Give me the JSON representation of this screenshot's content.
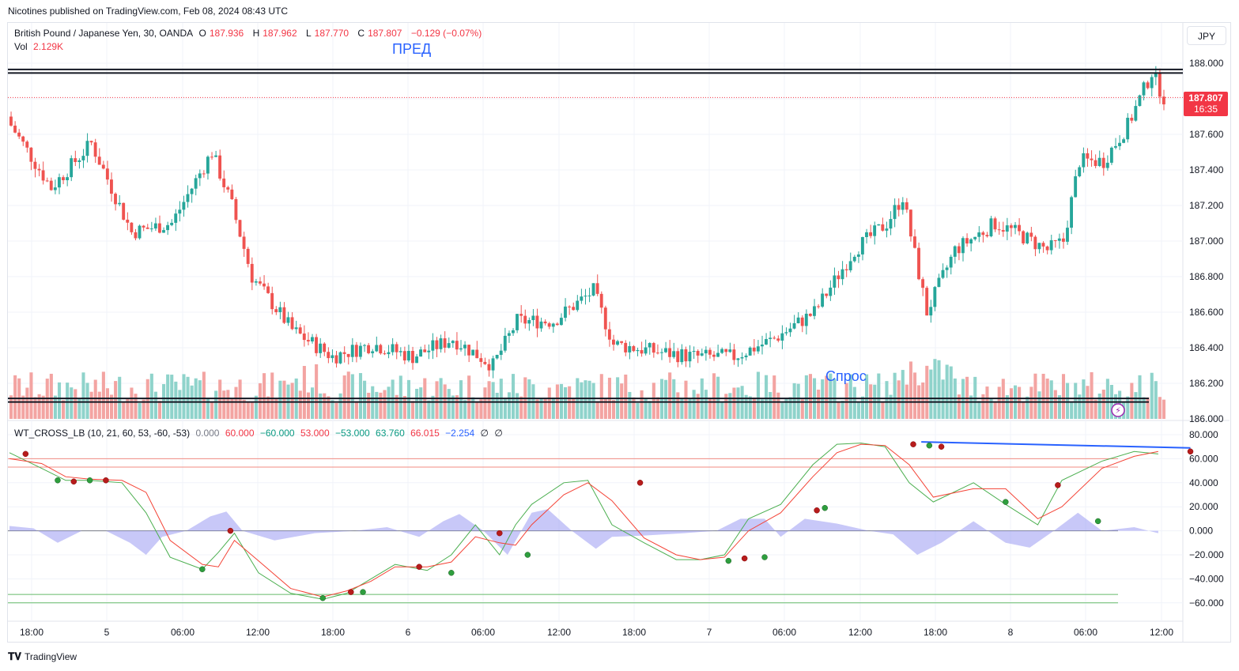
{
  "header": {
    "publisher": "Nicotines published on TradingView.com, Feb 08, 2024 08:43 UTC"
  },
  "legend": {
    "symbol": "British Pound / Japanese Yen, 30, OANDA",
    "o_label": "O",
    "o_value": "187.936",
    "h_label": "H",
    "h_value": "187.962",
    "l_label": "L",
    "l_value": "187.770",
    "c_label": "C",
    "c_value": "187.807",
    "change": "−0.129 (−0.07%)",
    "vol_label": "Vol",
    "vol_value": "2.129K",
    "indicator": "WT_CROSS_LB (10, 21, 60, 53, -60, -53)",
    "ind_values": [
      "0.000",
      "60.000",
      "−60.000",
      "53.000",
      "−53.000",
      "63.760",
      "66.015",
      "−2.254",
      "∅",
      "∅"
    ]
  },
  "currency_button": "JPY",
  "price_badge": {
    "price": "187.807",
    "countdown": "16:35"
  },
  "annotations": {
    "pred": "ПРЕД",
    "spros": "Спрос"
  },
  "footer": {
    "logo_text": "TradingView"
  },
  "colors": {
    "up": "#26a69a",
    "down": "#ef5350",
    "up_vol": "#8fd3cb",
    "down_vol": "#f3a4a2",
    "wave1": "#4caf50",
    "wave2": "#f44336",
    "hist": "#9b9bf2",
    "level_red": "#f28b82",
    "level_green": "#66bb6a",
    "trendline": "#2962ff"
  },
  "chart_data": [
    {
      "type": "candlestick",
      "title": "British Pound / Japanese Yen, 30, OANDA",
      "x_tick_labels": [
        "18:00",
        "5",
        "06:00",
        "12:00",
        "18:00",
        "6",
        "06:00",
        "12:00",
        "18:00",
        "7",
        "06:00",
        "12:00",
        "18:00",
        "8",
        "06:00",
        "12:00"
      ],
      "y_tick_labels": [
        "188.000",
        "187.800",
        "187.600",
        "187.400",
        "187.200",
        "187.000",
        "186.800",
        "186.600",
        "186.400",
        "186.200",
        "186.000"
      ],
      "ylim": [
        186.0,
        188.2
      ],
      "horizontal_levels": [
        187.965,
        187.945,
        186.115,
        186.095
      ],
      "last_price_line": 187.807,
      "close_path": [
        {
          "bar": 0,
          "close": 187.65
        },
        {
          "bar": 10,
          "close": 187.3
        },
        {
          "bar": 20,
          "close": 187.55
        },
        {
          "bar": 30,
          "close": 187.05
        },
        {
          "bar": 40,
          "close": 187.1
        },
        {
          "bar": 50,
          "close": 187.5
        },
        {
          "bar": 55,
          "close": 187.2
        },
        {
          "bar": 60,
          "close": 186.8
        },
        {
          "bar": 70,
          "close": 186.5
        },
        {
          "bar": 80,
          "close": 186.35
        },
        {
          "bar": 90,
          "close": 186.42
        },
        {
          "bar": 100,
          "close": 186.35
        },
        {
          "bar": 110,
          "close": 186.45
        },
        {
          "bar": 120,
          "close": 186.3
        },
        {
          "bar": 126,
          "close": 186.55
        },
        {
          "bar": 135,
          "close": 186.55
        },
        {
          "bar": 145,
          "close": 186.72
        },
        {
          "bar": 150,
          "close": 186.42
        },
        {
          "bar": 160,
          "close": 186.38
        },
        {
          "bar": 170,
          "close": 186.35
        },
        {
          "bar": 180,
          "close": 186.35
        },
        {
          "bar": 190,
          "close": 186.45
        },
        {
          "bar": 200,
          "close": 186.6
        },
        {
          "bar": 210,
          "close": 186.95
        },
        {
          "bar": 218,
          "close": 187.1
        },
        {
          "bar": 222,
          "close": 187.25
        },
        {
          "bar": 228,
          "close": 186.6
        },
        {
          "bar": 235,
          "close": 186.95
        },
        {
          "bar": 245,
          "close": 187.1
        },
        {
          "bar": 250,
          "close": 187.05
        },
        {
          "bar": 258,
          "close": 186.95
        },
        {
          "bar": 262,
          "close": 187.0
        },
        {
          "bar": 266,
          "close": 187.45
        },
        {
          "bar": 272,
          "close": 187.45
        },
        {
          "bar": 278,
          "close": 187.65
        },
        {
          "bar": 284,
          "close": 187.95
        },
        {
          "bar": 287,
          "close": 187.807
        }
      ],
      "volume_label": "Vol 2.129K"
    },
    {
      "type": "line",
      "title": "WT_CROSS_LB (10, 21, 60, 53, -60, -53)",
      "y_tick_labels": [
        "80.000",
        "60.000",
        "40.000",
        "20.000",
        "0.000",
        "−20.000",
        "−40.000",
        "−60.000"
      ],
      "ylim": [
        -70,
        85
      ],
      "levels": [
        60,
        53,
        0,
        -53,
        -60
      ],
      "series": [
        {
          "name": "wt1",
          "points": [
            [
              0,
              65
            ],
            [
              8,
              52
            ],
            [
              14,
              42
            ],
            [
              20,
              42
            ],
            [
              28,
              40
            ],
            [
              34,
              15
            ],
            [
              40,
              -22
            ],
            [
              48,
              -32
            ],
            [
              52,
              -18
            ],
            [
              56,
              -2
            ],
            [
              62,
              -35
            ],
            [
              70,
              -52
            ],
            [
              78,
              -57
            ],
            [
              84,
              -52
            ],
            [
              90,
              -40
            ],
            [
              96,
              -28
            ],
            [
              104,
              -33
            ],
            [
              110,
              -20
            ],
            [
              116,
              5
            ],
            [
              122,
              -20
            ],
            [
              126,
              5
            ],
            [
              130,
              22
            ],
            [
              138,
              40
            ],
            [
              144,
              42
            ],
            [
              150,
              5
            ],
            [
              158,
              -10
            ],
            [
              166,
              -24
            ],
            [
              172,
              -24
            ],
            [
              178,
              -20
            ],
            [
              184,
              10
            ],
            [
              192,
              22
            ],
            [
              200,
              55
            ],
            [
              206,
              72
            ],
            [
              212,
              73
            ],
            [
              218,
              70
            ],
            [
              224,
              40
            ],
            [
              230,
              24
            ],
            [
              240,
              40
            ],
            [
              248,
              22
            ],
            [
              256,
              5
            ],
            [
              262,
              42
            ],
            [
              272,
              58
            ],
            [
              280,
              66
            ],
            [
              286,
              64
            ]
          ]
        },
        {
          "name": "wt2",
          "points": [
            [
              0,
              60
            ],
            [
              8,
              56
            ],
            [
              14,
              45
            ],
            [
              20,
              43
            ],
            [
              28,
              42
            ],
            [
              34,
              32
            ],
            [
              40,
              -8
            ],
            [
              48,
              -28
            ],
            [
              52,
              -30
            ],
            [
              56,
              -8
            ],
            [
              62,
              -25
            ],
            [
              70,
              -48
            ],
            [
              78,
              -55
            ],
            [
              84,
              -50
            ],
            [
              90,
              -42
            ],
            [
              96,
              -30
            ],
            [
              104,
              -30
            ],
            [
              110,
              -26
            ],
            [
              116,
              -5
            ],
            [
              122,
              -10
            ],
            [
              126,
              -12
            ],
            [
              130,
              5
            ],
            [
              138,
              30
            ],
            [
              144,
              40
            ],
            [
              150,
              25
            ],
            [
              158,
              -6
            ],
            [
              166,
              -20
            ],
            [
              172,
              -24
            ],
            [
              178,
              -22
            ],
            [
              184,
              0
            ],
            [
              192,
              15
            ],
            [
              200,
              45
            ],
            [
              206,
              65
            ],
            [
              212,
              72
            ],
            [
              218,
              71
            ],
            [
              224,
              55
            ],
            [
              230,
              28
            ],
            [
              240,
              35
            ],
            [
              248,
              35
            ],
            [
              256,
              10
            ],
            [
              262,
              20
            ],
            [
              272,
              52
            ],
            [
              280,
              62
            ],
            [
              286,
              66
            ]
          ]
        },
        {
          "name": "hist",
          "points": [
            [
              0,
              4
            ],
            [
              6,
              2
            ],
            [
              12,
              -10
            ],
            [
              18,
              0
            ],
            [
              24,
              0
            ],
            [
              30,
              -10
            ],
            [
              34,
              -20
            ],
            [
              38,
              -5
            ],
            [
              44,
              0
            ],
            [
              50,
              12
            ],
            [
              54,
              16
            ],
            [
              58,
              0
            ],
            [
              66,
              -8
            ],
            [
              76,
              -2
            ],
            [
              86,
              0
            ],
            [
              94,
              3
            ],
            [
              102,
              -5
            ],
            [
              108,
              8
            ],
            [
              112,
              14
            ],
            [
              118,
              0
            ],
            [
              124,
              -20
            ],
            [
              130,
              15
            ],
            [
              134,
              18
            ],
            [
              140,
              0
            ],
            [
              146,
              -15
            ],
            [
              150,
              -5
            ],
            [
              158,
              -4
            ],
            [
              168,
              -2
            ],
            [
              176,
              0
            ],
            [
              182,
              10
            ],
            [
              188,
              10
            ],
            [
              192,
              -5
            ],
            [
              198,
              10
            ],
            [
              206,
              6
            ],
            [
              214,
              0
            ],
            [
              220,
              -3
            ],
            [
              226,
              -20
            ],
            [
              232,
              -10
            ],
            [
              240,
              8
            ],
            [
              248,
              -10
            ],
            [
              254,
              -14
            ],
            [
              260,
              0
            ],
            [
              266,
              15
            ],
            [
              272,
              0
            ],
            [
              280,
              3
            ],
            [
              286,
              -2
            ]
          ]
        }
      ],
      "cross_markers": [
        {
          "bar": 4,
          "value": 64,
          "color": "red"
        },
        {
          "bar": 12,
          "value": 42,
          "color": "green"
        },
        {
          "bar": 16,
          "value": 41,
          "color": "red"
        },
        {
          "bar": 20,
          "value": 42,
          "color": "green"
        },
        {
          "bar": 24,
          "value": 42,
          "color": "red"
        },
        {
          "bar": 48,
          "value": -32,
          "color": "green"
        },
        {
          "bar": 55,
          "value": 0,
          "color": "red"
        },
        {
          "bar": 78,
          "value": -56,
          "color": "green"
        },
        {
          "bar": 85,
          "value": -51,
          "color": "red"
        },
        {
          "bar": 88,
          "value": -51,
          "color": "green"
        },
        {
          "bar": 102,
          "value": -30,
          "color": "red"
        },
        {
          "bar": 110,
          "value": -35,
          "color": "green"
        },
        {
          "bar": 122,
          "value": -2,
          "color": "red"
        },
        {
          "bar": 129,
          "value": -20,
          "color": "green"
        },
        {
          "bar": 157,
          "value": 40,
          "color": "red"
        },
        {
          "bar": 179,
          "value": -25,
          "color": "green"
        },
        {
          "bar": 183,
          "value": -23,
          "color": "red"
        },
        {
          "bar": 188,
          "value": -22,
          "color": "green"
        },
        {
          "bar": 201,
          "value": 17,
          "color": "red"
        },
        {
          "bar": 203,
          "value": 19,
          "color": "green"
        },
        {
          "bar": 225,
          "value": 72,
          "color": "red"
        },
        {
          "bar": 229,
          "value": 71,
          "color": "green"
        },
        {
          "bar": 232,
          "value": 70,
          "color": "red"
        },
        {
          "bar": 248,
          "value": 24,
          "color": "green"
        },
        {
          "bar": 261,
          "value": 38,
          "color": "red"
        },
        {
          "bar": 271,
          "value": 8,
          "color": "green"
        },
        {
          "bar": 294,
          "value": 66,
          "color": "red"
        }
      ],
      "trendline": [
        [
          227,
          74
        ],
        [
          294,
          69
        ]
      ]
    }
  ]
}
